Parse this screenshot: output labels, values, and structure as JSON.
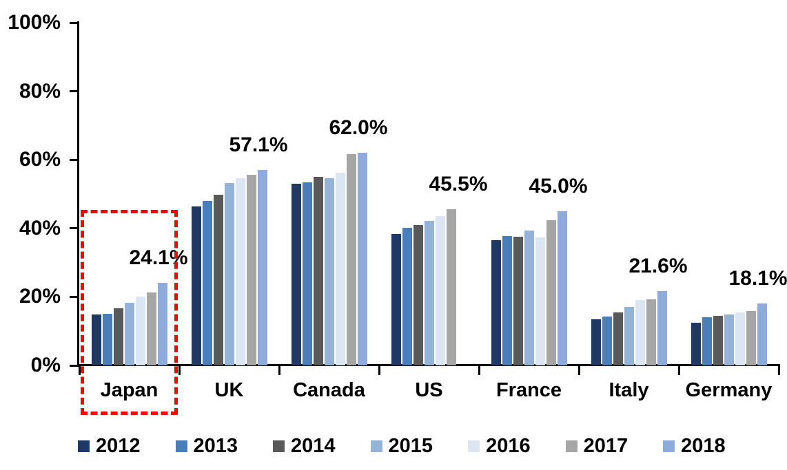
{
  "chart_data": {
    "type": "bar",
    "title": "",
    "categories": [
      "Japan",
      "UK",
      "Canada",
      "US",
      "France",
      "Italy",
      "Germany"
    ],
    "series": [
      {
        "name": "2012",
        "color": "#1F3864",
        "values": [
          14.8,
          46.4,
          53.0,
          38.4,
          36.6,
          13.4,
          12.5
        ]
      },
      {
        "name": "2013",
        "color": "#4A7EBB",
        "values": [
          15.0,
          47.9,
          53.5,
          40.2,
          37.8,
          14.2,
          14.0
        ]
      },
      {
        "name": "2014",
        "color": "#595959",
        "values": [
          16.6,
          49.9,
          55.0,
          41.0,
          37.6,
          15.4,
          14.4
        ]
      },
      {
        "name": "2015",
        "color": "#95B3D7",
        "values": [
          18.2,
          53.2,
          54.7,
          42.2,
          39.4,
          17.0,
          14.9
        ]
      },
      {
        "name": "2016",
        "color": "#DCE6F2",
        "values": [
          20.0,
          54.6,
          56.2,
          43.6,
          37.4,
          19.0,
          15.4
        ]
      },
      {
        "name": "2017",
        "color": "#A6A6A6",
        "values": [
          21.2,
          55.7,
          61.6,
          45.5,
          42.4,
          19.2,
          15.9
        ]
      },
      {
        "name": "2018",
        "color": "#8FAADC",
        "values": [
          24.1,
          57.1,
          62.0,
          null,
          45.0,
          21.6,
          18.1
        ]
      }
    ],
    "data_labels": [
      "24.1%",
      "57.1%",
      "62.0%",
      "45.5%",
      "45.0%",
      "21.6%",
      "18.1%"
    ],
    "ylim": [
      0,
      100
    ],
    "yticks": [
      {
        "label": "0%",
        "value": 0
      },
      {
        "label": "20%",
        "value": 20
      },
      {
        "label": "40%",
        "value": 40
      },
      {
        "label": "60%",
        "value": 60
      },
      {
        "label": "80%",
        "value": 80
      },
      {
        "label": "100%",
        "value": 100
      }
    ],
    "grid": "off",
    "legend_position": "bottom",
    "highlight": {
      "target": "Japan",
      "style": "dashed-rectangle",
      "color": "#FF0000"
    },
    "axis_color": "#000000",
    "background_color": "#FFFFFF"
  }
}
